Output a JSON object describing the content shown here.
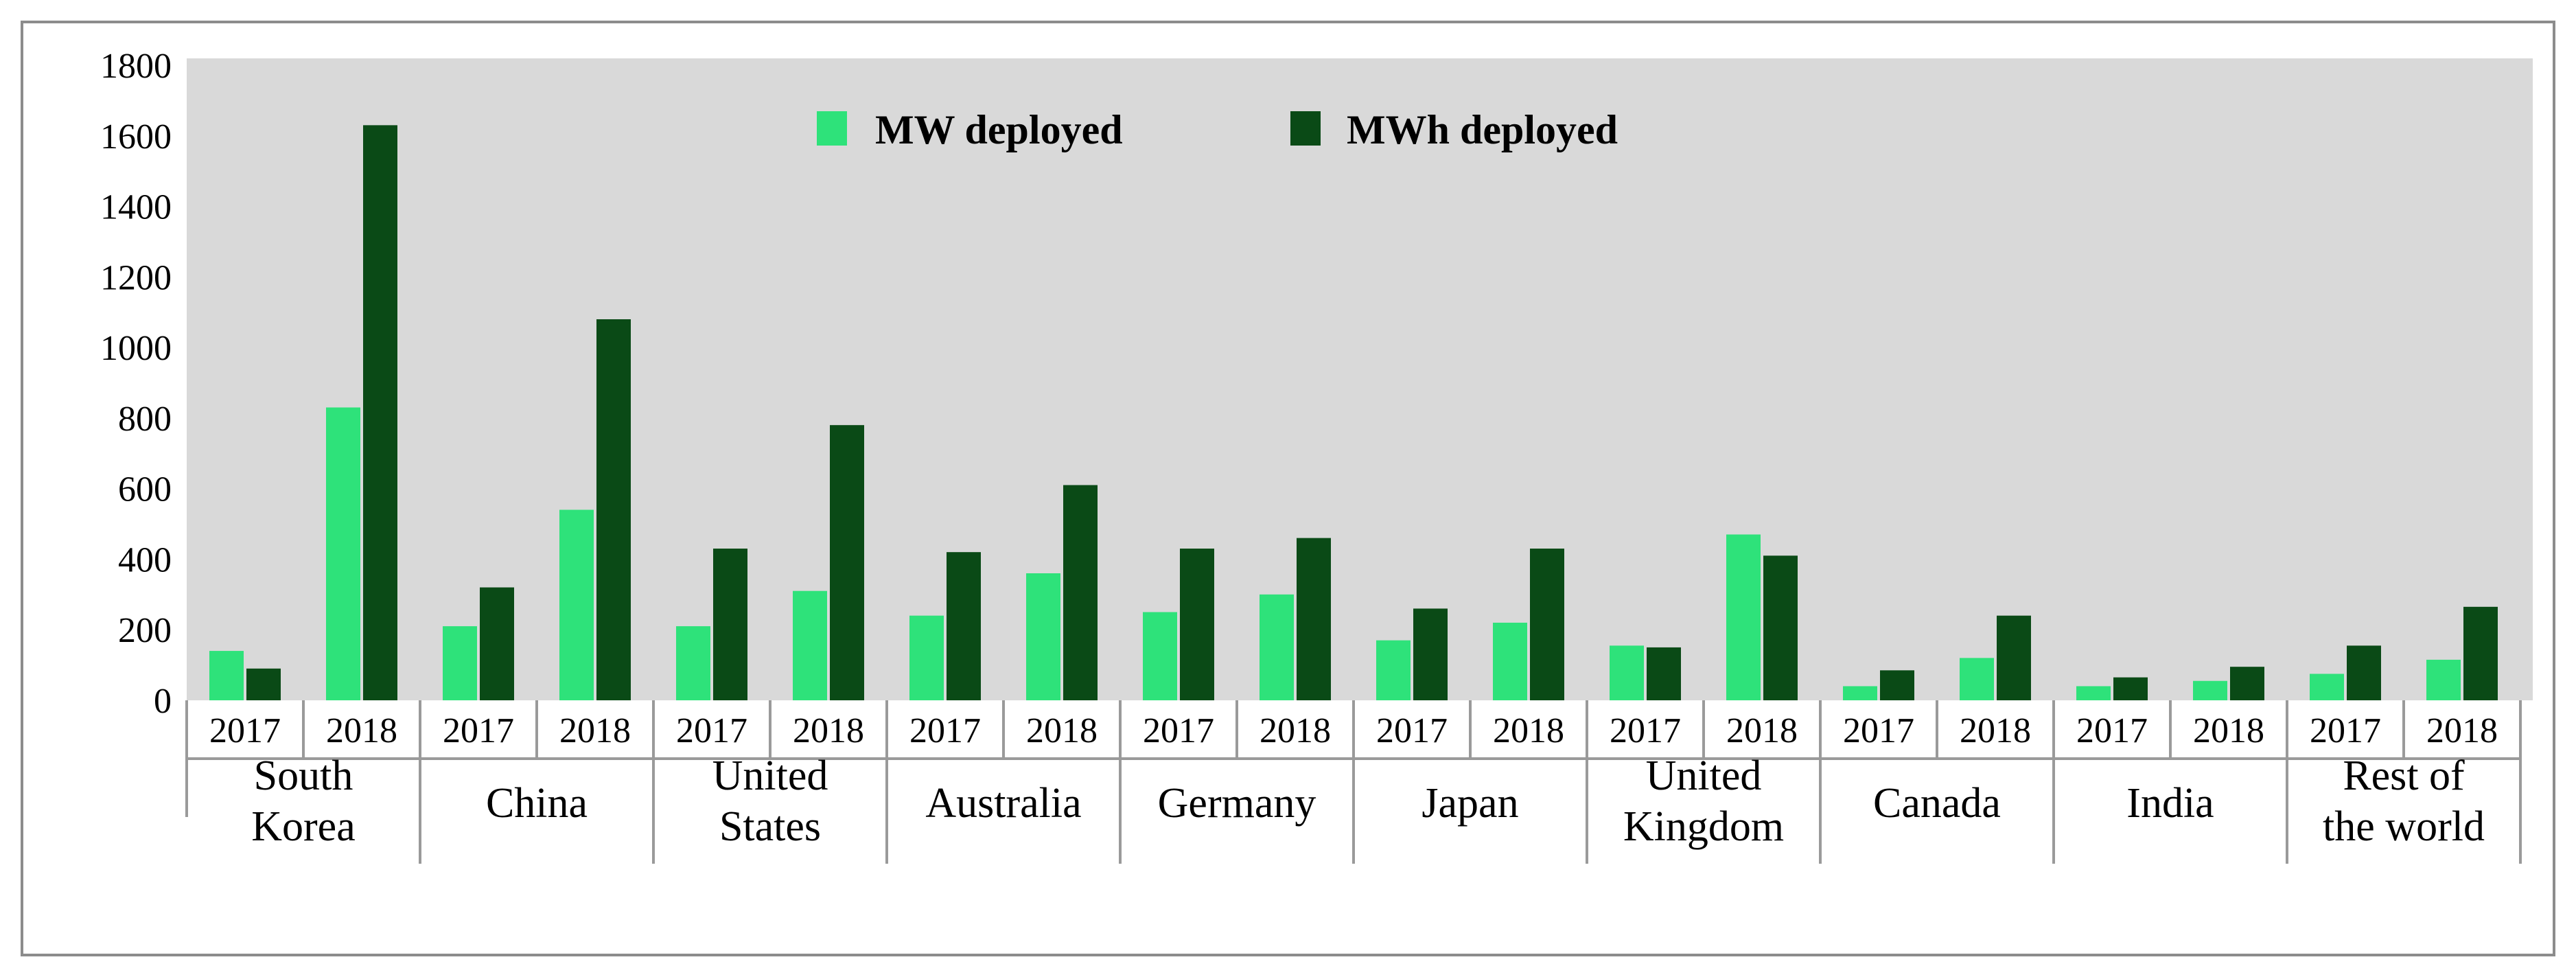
{
  "chart_data": {
    "type": "bar",
    "title": "",
    "xlabel": "",
    "ylabel": "",
    "ylim": [
      0,
      1800
    ],
    "yticks": [
      0,
      200,
      400,
      600,
      800,
      1000,
      1200,
      1400,
      1600,
      1800
    ],
    "grid": false,
    "legend_position": "top-center",
    "series_names": [
      "MW deployed",
      "MWh deployed"
    ],
    "series_colors": [
      "#2ee27a",
      "#0a4a16"
    ],
    "groups": [
      {
        "name": [
          "South",
          "Korea"
        ],
        "years": [
          {
            "year": "2017",
            "mw": 140,
            "mwh": 90
          },
          {
            "year": "2018",
            "mw": 830,
            "mwh": 1630
          }
        ]
      },
      {
        "name": [
          "China"
        ],
        "years": [
          {
            "year": "2017",
            "mw": 210,
            "mwh": 320
          },
          {
            "year": "2018",
            "mw": 540,
            "mwh": 1080
          }
        ]
      },
      {
        "name": [
          "United",
          "States"
        ],
        "years": [
          {
            "year": "2017",
            "mw": 210,
            "mwh": 430
          },
          {
            "year": "2018",
            "mw": 310,
            "mwh": 780
          }
        ]
      },
      {
        "name": [
          "Australia"
        ],
        "years": [
          {
            "year": "2017",
            "mw": 240,
            "mwh": 420
          },
          {
            "year": "2018",
            "mw": 360,
            "mwh": 610
          }
        ]
      },
      {
        "name": [
          "Germany"
        ],
        "years": [
          {
            "year": "2017",
            "mw": 250,
            "mwh": 430
          },
          {
            "year": "2018",
            "mw": 300,
            "mwh": 460
          }
        ]
      },
      {
        "name": [
          "Japan"
        ],
        "years": [
          {
            "year": "2017",
            "mw": 170,
            "mwh": 260
          },
          {
            "year": "2018",
            "mw": 220,
            "mwh": 430
          }
        ]
      },
      {
        "name": [
          "United",
          "Kingdom"
        ],
        "years": [
          {
            "year": "2017",
            "mw": 155,
            "mwh": 150
          },
          {
            "year": "2018",
            "mw": 470,
            "mwh": 410
          }
        ]
      },
      {
        "name": [
          "Canada"
        ],
        "years": [
          {
            "year": "2017",
            "mw": 40,
            "mwh": 85
          },
          {
            "year": "2018",
            "mw": 120,
            "mwh": 240
          }
        ]
      },
      {
        "name": [
          "India"
        ],
        "years": [
          {
            "year": "2017",
            "mw": 40,
            "mwh": 65
          },
          {
            "year": "2018",
            "mw": 55,
            "mwh": 95
          }
        ]
      },
      {
        "name": [
          "Rest of",
          "the world"
        ],
        "years": [
          {
            "year": "2017",
            "mw": 75,
            "mwh": 155
          },
          {
            "year": "2018",
            "mw": 115,
            "mwh": 265
          }
        ]
      }
    ]
  }
}
